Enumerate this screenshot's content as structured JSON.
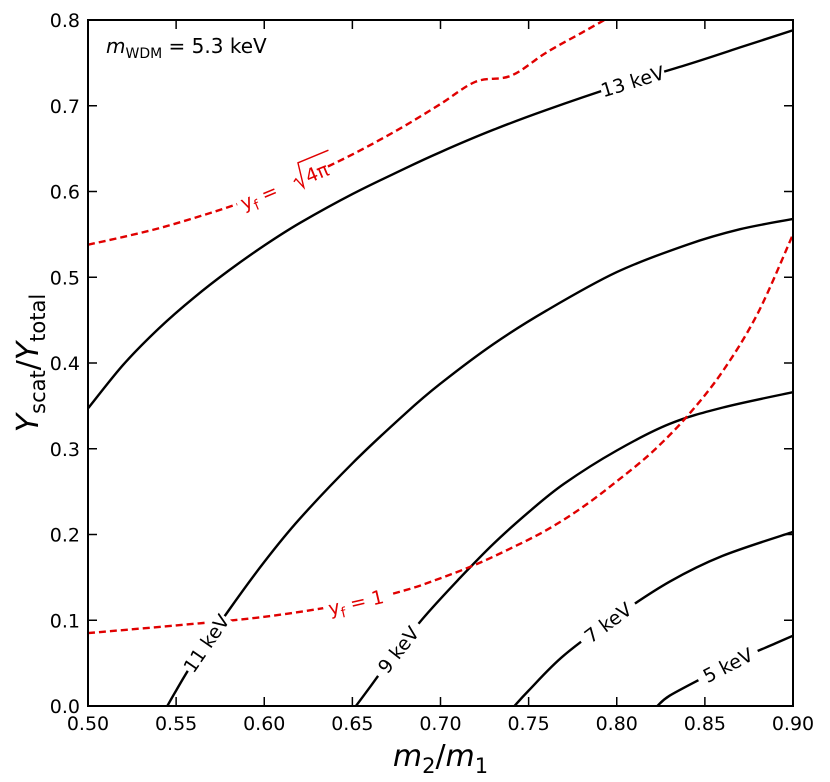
{
  "chart_data": {
    "type": "line",
    "title": "",
    "xlabel": {
      "base": "m",
      "sub1": "2",
      "sep": "/",
      "base2": "m",
      "sub2": "1"
    },
    "ylabel": {
      "base": "Y",
      "sub1": "scat",
      "sep": "/",
      "base2": "Y",
      "sub2": "total"
    },
    "xlim": [
      0.5,
      0.9
    ],
    "ylim": [
      0.0,
      0.8
    ],
    "x_ticks": [
      0.5,
      0.55,
      0.6,
      0.65,
      0.7,
      0.75,
      0.8,
      0.85,
      0.9
    ],
    "x_tick_labels": [
      "0.50",
      "0.55",
      "0.60",
      "0.65",
      "0.70",
      "0.75",
      "0.80",
      "0.85",
      "0.90"
    ],
    "y_ticks": [
      0.0,
      0.1,
      0.2,
      0.3,
      0.4,
      0.5,
      0.6,
      0.7,
      0.8
    ],
    "y_tick_labels": [
      "0.0",
      "0.1",
      "0.2",
      "0.3",
      "0.4",
      "0.5",
      "0.6",
      "0.7",
      "0.8"
    ],
    "annotation": {
      "base": "m",
      "sub": "WDM",
      "rest": " = 5.3 keV"
    },
    "colors": {
      "contour": "#000000",
      "constraint": "#e00000"
    },
    "series": [
      {
        "name": "13 keV",
        "style": "solid",
        "label": "13 keV",
        "label_at": 0.809,
        "x": [
          0.5,
          0.52,
          0.54,
          0.56,
          0.58,
          0.6,
          0.62,
          0.65,
          0.68,
          0.7,
          0.73,
          0.76,
          0.8,
          0.84,
          0.87,
          0.9
        ],
        "y": [
          0.347,
          0.398,
          0.44,
          0.476,
          0.508,
          0.537,
          0.563,
          0.597,
          0.627,
          0.646,
          0.672,
          0.695,
          0.723,
          0.748,
          0.768,
          0.788
        ]
      },
      {
        "name": "11 keV",
        "style": "solid",
        "label": "11 keV",
        "label_at": 0.567,
        "x": [
          0.545,
          0.55,
          0.56,
          0.58,
          0.6,
          0.62,
          0.65,
          0.68,
          0.7,
          0.73,
          0.76,
          0.8,
          0.84,
          0.87,
          0.9
        ],
        "y": [
          0.0,
          0.018,
          0.052,
          0.112,
          0.168,
          0.218,
          0.283,
          0.341,
          0.376,
          0.422,
          0.461,
          0.506,
          0.538,
          0.556,
          0.568
        ]
      },
      {
        "name": "9 keV",
        "style": "solid",
        "label": "9 keV",
        "label_at": 0.676,
        "x": [
          0.652,
          0.66,
          0.67,
          0.69,
          0.71,
          0.73,
          0.75,
          0.77,
          0.8,
          0.83,
          0.86,
          0.9
        ],
        "y": [
          0.0,
          0.022,
          0.05,
          0.102,
          0.147,
          0.189,
          0.226,
          0.259,
          0.298,
          0.329,
          0.348,
          0.366
        ]
      },
      {
        "name": "7 keV",
        "style": "solid",
        "label": "7 keV",
        "label_at": 0.795,
        "x": [
          0.742,
          0.75,
          0.77,
          0.8,
          0.83,
          0.86,
          0.9
        ],
        "y": [
          0.0,
          0.018,
          0.059,
          0.105,
          0.145,
          0.175,
          0.203
        ]
      },
      {
        "name": "5 keV",
        "style": "solid",
        "label": "5 keV",
        "label_at": 0.863,
        "x": [
          0.823,
          0.83,
          0.85,
          0.87,
          0.89,
          0.9
        ],
        "y": [
          0.0,
          0.012,
          0.034,
          0.055,
          0.073,
          0.082
        ]
      },
      {
        "name": "y_f = 1",
        "style": "dashed",
        "label_base": "y",
        "label_sub": "f",
        "label_rest": " = 1",
        "label_at": 0.653,
        "x": [
          0.5,
          0.55,
          0.6,
          0.65,
          0.68,
          0.7,
          0.72,
          0.74,
          0.76,
          0.78,
          0.8,
          0.82,
          0.84,
          0.86,
          0.88,
          0.9
        ],
        "y": [
          0.085,
          0.094,
          0.104,
          0.12,
          0.135,
          0.149,
          0.165,
          0.184,
          0.205,
          0.231,
          0.262,
          0.296,
          0.338,
          0.39,
          0.458,
          0.55
        ]
      },
      {
        "name": "y_f = sqrt(4π)",
        "style": "dashed",
        "label_base": "y",
        "label_sub": "f",
        "label_rest": " = ",
        "label_root": "4π",
        "label_at": 0.61,
        "x": [
          0.5,
          0.52,
          0.54,
          0.56,
          0.58,
          0.6,
          0.62,
          0.64,
          0.66,
          0.68,
          0.7,
          0.72,
          0.74,
          0.76,
          0.78,
          0.793
        ],
        "y": [
          0.538,
          0.547,
          0.557,
          0.569,
          0.582,
          0.597,
          0.614,
          0.633,
          0.654,
          0.677,
          0.702,
          0.728,
          0.735,
          0.762,
          0.785,
          0.8
        ]
      }
    ]
  }
}
